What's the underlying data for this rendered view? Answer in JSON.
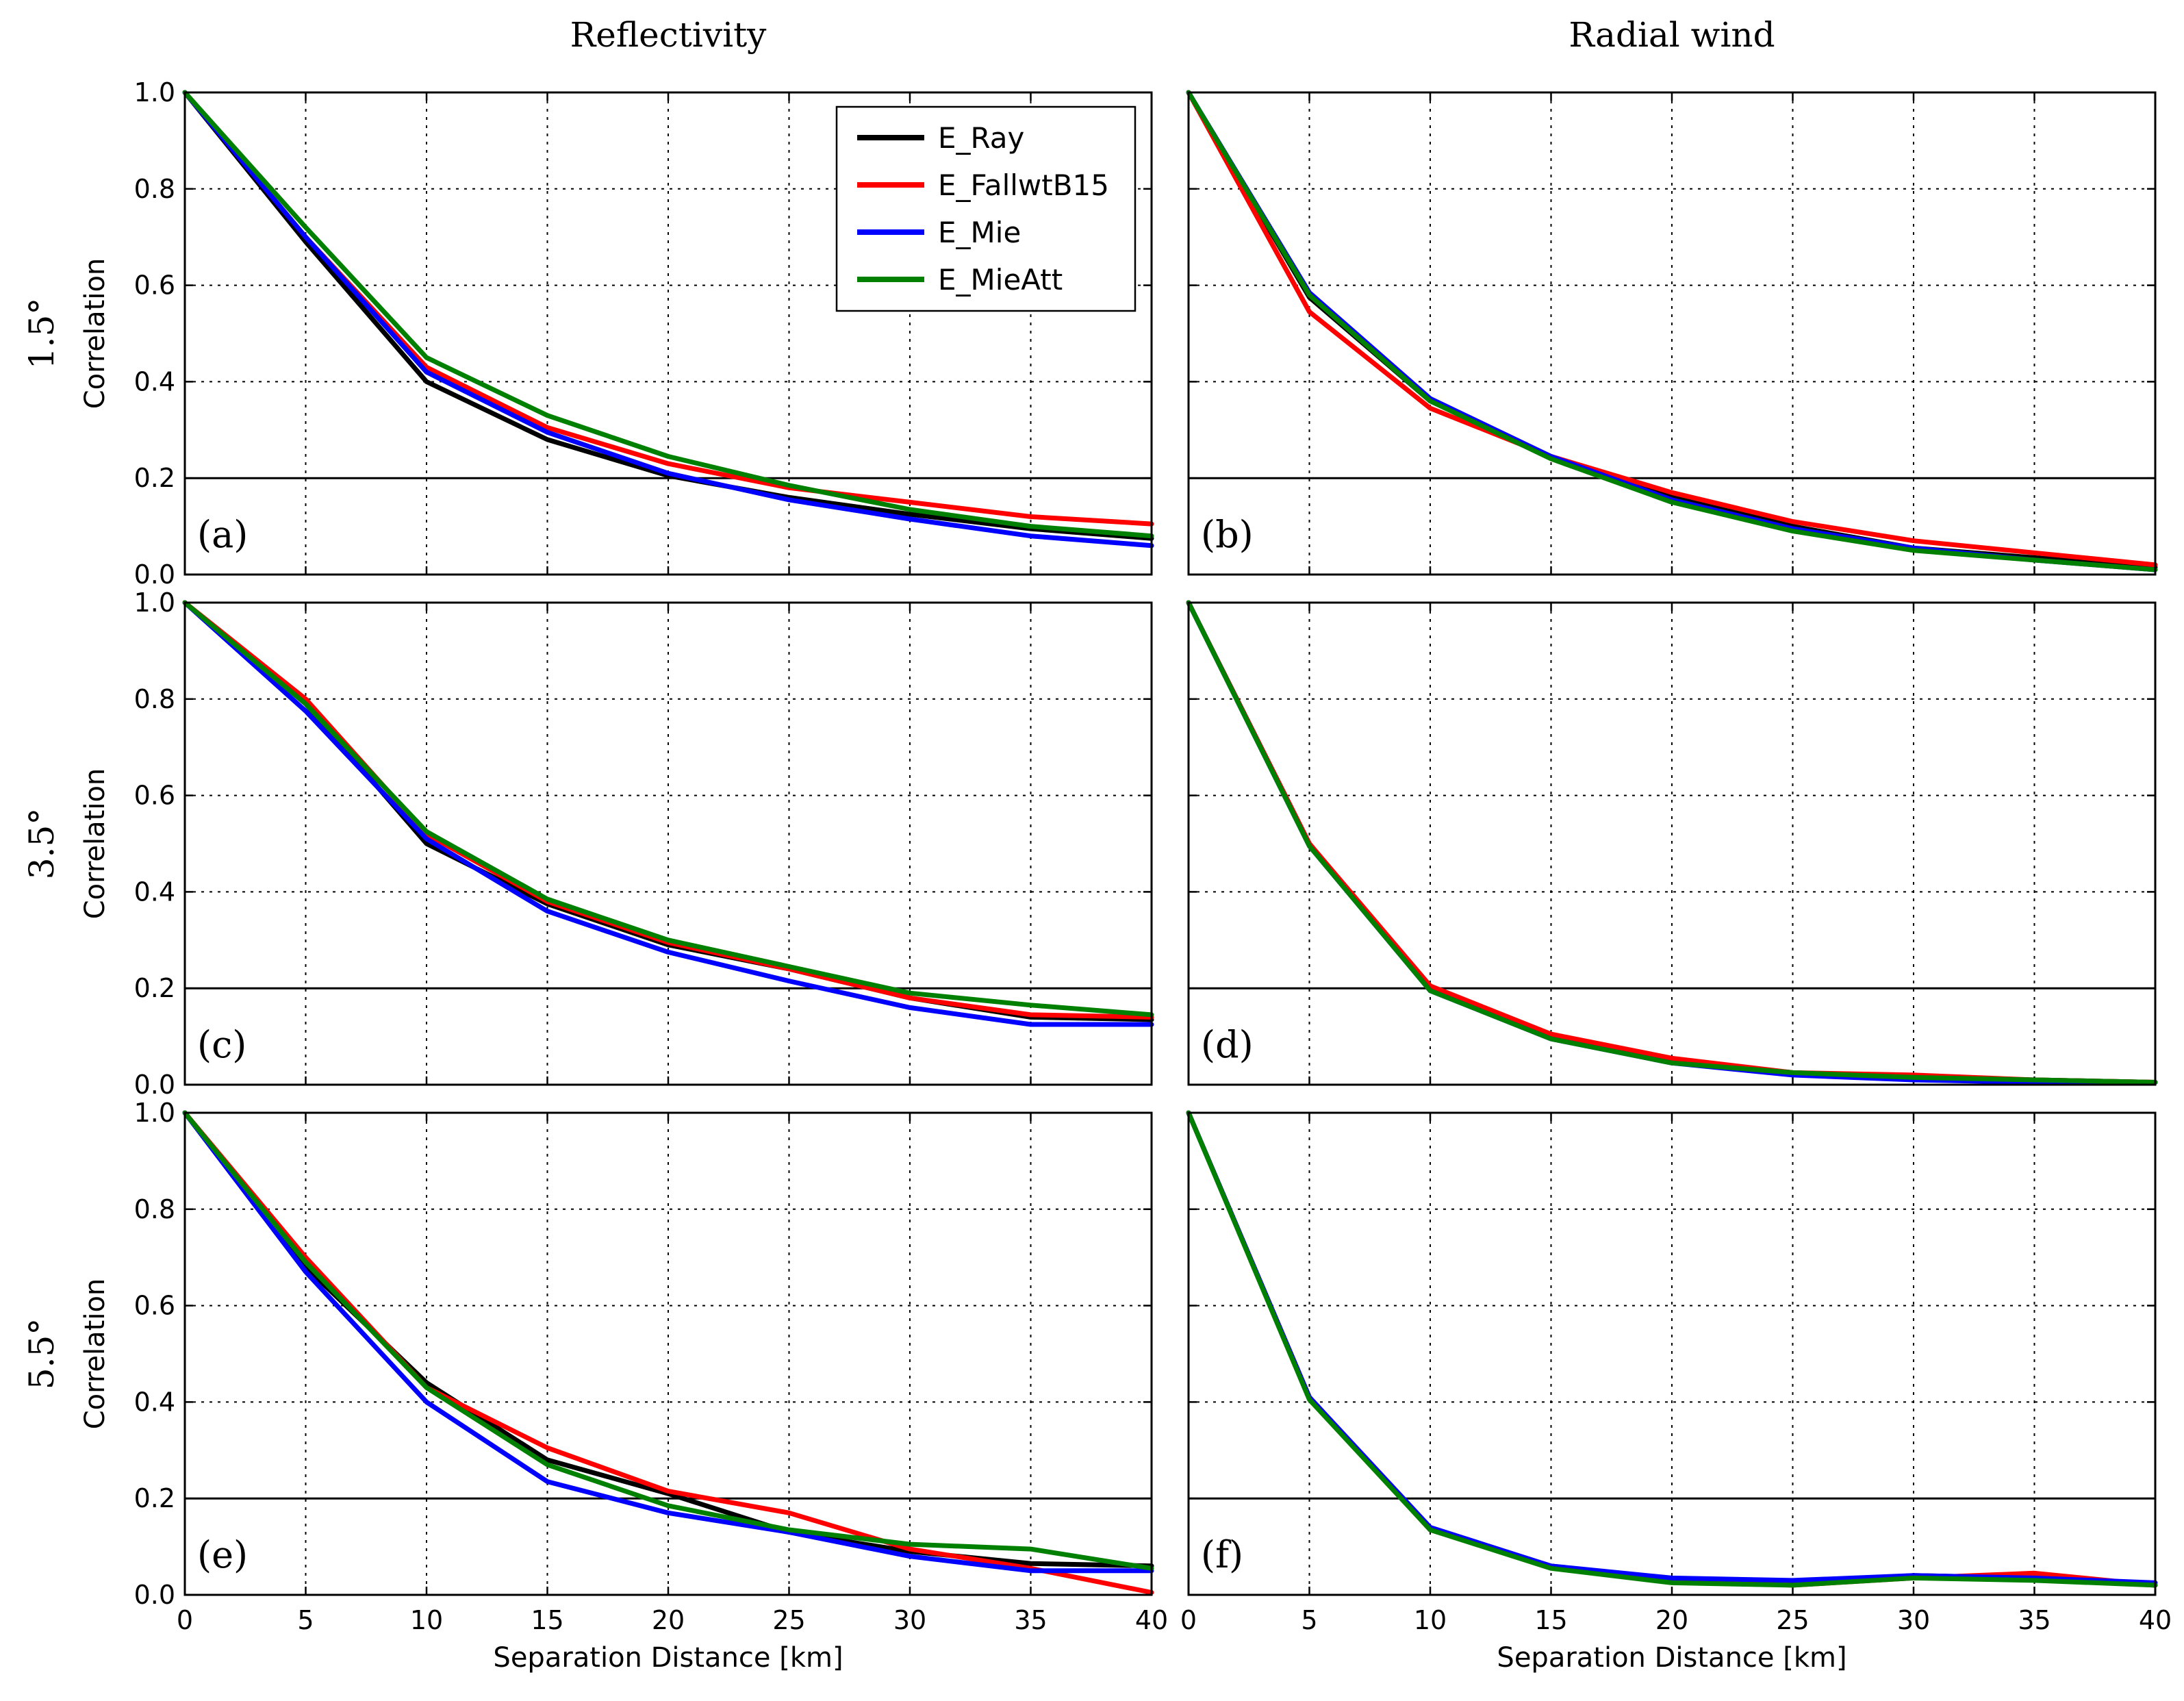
{
  "chart_data": {
    "type": "line",
    "column_titles": [
      "Reflectivity",
      "Radial wind"
    ],
    "row_titles": [
      "1.5°",
      "3.5°",
      "5.5°"
    ],
    "xlabel": "Separation Distance [km]",
    "ylabel": "Correlation",
    "xlim": [
      0,
      40
    ],
    "ylim": [
      0,
      1
    ],
    "x_ticks": [
      "0",
      "5",
      "10",
      "15",
      "20",
      "25",
      "30",
      "35",
      "40"
    ],
    "y_ticks": [
      "0.0",
      "0.2",
      "0.4",
      "0.6",
      "0.8",
      "1.0"
    ],
    "threshold": 0.2,
    "legend": {
      "location": "upper-right of panel (a)",
      "entries": [
        "E_Ray",
        "E_FallwtB15",
        "E_Mie",
        "E_MieAtt"
      ]
    },
    "colors": {
      "E_Ray": "#000000",
      "E_FallwtB15": "#ff0000",
      "E_Mie": "#0000ff",
      "E_MieAtt": "#008000"
    },
    "x": [
      0,
      5,
      10,
      15,
      20,
      25,
      30,
      35,
      40
    ],
    "panels": [
      {
        "label": "(a)",
        "series": [
          {
            "name": "E_Ray",
            "values": [
              1.0,
              0.69,
              0.4,
              0.28,
              0.205,
              0.16,
              0.125,
              0.095,
              0.075
            ]
          },
          {
            "name": "E_FallwtB15",
            "values": [
              1.0,
              0.7,
              0.43,
              0.305,
              0.23,
              0.18,
              0.15,
              0.12,
              0.105
            ]
          },
          {
            "name": "E_Mie",
            "values": [
              1.0,
              0.7,
              0.42,
              0.295,
              0.21,
              0.155,
              0.115,
              0.08,
              0.06
            ]
          },
          {
            "name": "E_MieAtt",
            "values": [
              1.0,
              0.72,
              0.45,
              0.33,
              0.245,
              0.185,
              0.135,
              0.1,
              0.08
            ]
          }
        ]
      },
      {
        "label": "(b)",
        "series": [
          {
            "name": "E_Ray",
            "values": [
              1.0,
              0.575,
              0.36,
              0.245,
              0.16,
              0.1,
              0.055,
              0.035,
              0.015
            ]
          },
          {
            "name": "E_FallwtB15",
            "values": [
              1.0,
              0.545,
              0.345,
              0.245,
              0.17,
              0.11,
              0.07,
              0.045,
              0.02
            ]
          },
          {
            "name": "E_Mie",
            "values": [
              1.0,
              0.585,
              0.365,
              0.245,
              0.155,
              0.095,
              0.055,
              0.03,
              0.01
            ]
          },
          {
            "name": "E_MieAtt",
            "values": [
              1.0,
              0.58,
              0.36,
              0.24,
              0.15,
              0.09,
              0.05,
              0.03,
              0.01
            ]
          }
        ]
      },
      {
        "label": "(c)",
        "series": [
          {
            "name": "E_Ray",
            "values": [
              1.0,
              0.79,
              0.5,
              0.375,
              0.29,
              0.24,
              0.18,
              0.14,
              0.135
            ]
          },
          {
            "name": "E_FallwtB15",
            "values": [
              1.0,
              0.8,
              0.52,
              0.38,
              0.295,
              0.24,
              0.18,
              0.145,
              0.14
            ]
          },
          {
            "name": "E_Mie",
            "values": [
              1.0,
              0.775,
              0.51,
              0.36,
              0.275,
              0.215,
              0.16,
              0.125,
              0.125
            ]
          },
          {
            "name": "E_MieAtt",
            "values": [
              1.0,
              0.79,
              0.525,
              0.385,
              0.3,
              0.245,
              0.19,
              0.165,
              0.145
            ]
          }
        ]
      },
      {
        "label": "(d)",
        "series": [
          {
            "name": "E_Ray",
            "values": [
              1.0,
              0.5,
              0.2,
              0.1,
              0.05,
              0.025,
              0.015,
              0.01,
              0.005
            ]
          },
          {
            "name": "E_FallwtB15",
            "values": [
              1.0,
              0.5,
              0.205,
              0.105,
              0.055,
              0.025,
              0.02,
              0.01,
              0.005
            ]
          },
          {
            "name": "E_Mie",
            "values": [
              1.0,
              0.495,
              0.195,
              0.095,
              0.045,
              0.02,
              0.01,
              0.005,
              0.005
            ]
          },
          {
            "name": "E_MieAtt",
            "values": [
              1.0,
              0.495,
              0.195,
              0.095,
              0.045,
              0.025,
              0.015,
              0.01,
              0.005
            ]
          }
        ]
      },
      {
        "label": "(e)",
        "series": [
          {
            "name": "E_Ray",
            "values": [
              1.0,
              0.68,
              0.44,
              0.28,
              0.21,
              0.13,
              0.09,
              0.065,
              0.06
            ]
          },
          {
            "name": "E_FallwtB15",
            "values": [
              1.0,
              0.7,
              0.43,
              0.305,
              0.215,
              0.17,
              0.095,
              0.055,
              0.005
            ]
          },
          {
            "name": "E_Mie",
            "values": [
              1.0,
              0.67,
              0.4,
              0.235,
              0.17,
              0.13,
              0.08,
              0.05,
              0.05
            ]
          },
          {
            "name": "E_MieAtt",
            "values": [
              1.0,
              0.69,
              0.43,
              0.27,
              0.185,
              0.135,
              0.105,
              0.095,
              0.055
            ]
          }
        ]
      },
      {
        "label": "(f)",
        "series": [
          {
            "name": "E_Ray",
            "values": [
              1.0,
              0.41,
              0.135,
              0.06,
              0.03,
              0.025,
              0.04,
              0.035,
              0.02
            ]
          },
          {
            "name": "E_FallwtB15",
            "values": [
              1.0,
              0.41,
              0.135,
              0.06,
              0.03,
              0.02,
              0.035,
              0.045,
              0.02
            ]
          },
          {
            "name": "E_Mie",
            "values": [
              1.0,
              0.41,
              0.14,
              0.06,
              0.035,
              0.03,
              0.04,
              0.035,
              0.025
            ]
          },
          {
            "name": "E_MieAtt",
            "values": [
              1.0,
              0.405,
              0.135,
              0.055,
              0.025,
              0.02,
              0.035,
              0.03,
              0.02
            ]
          }
        ]
      }
    ]
  }
}
